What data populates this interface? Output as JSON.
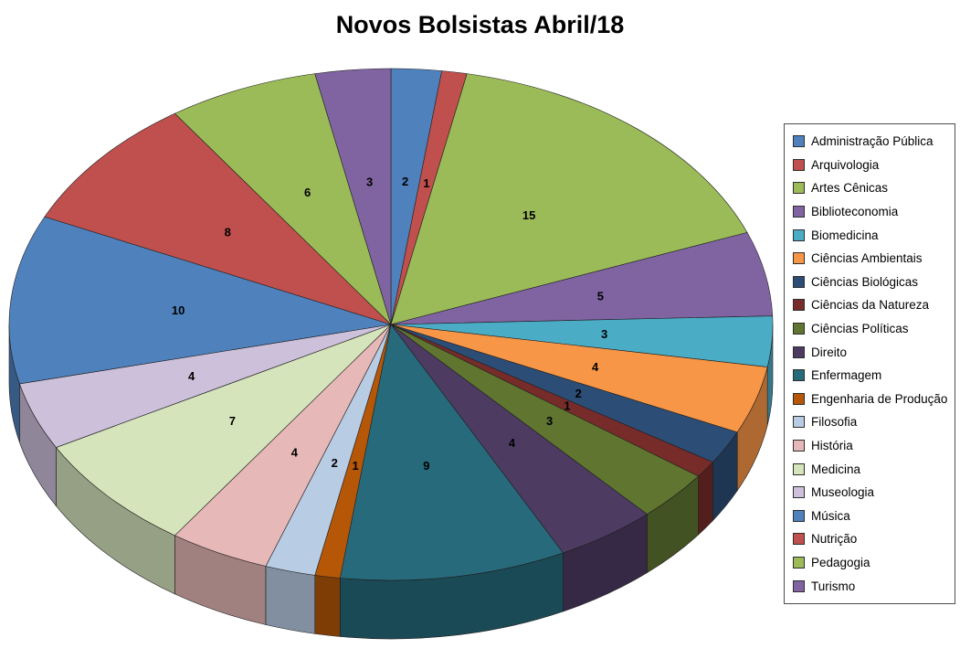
{
  "chart_data": {
    "type": "pie",
    "style": "3d",
    "title": "Novos Bolsistas Abril/18",
    "start_angle_deg": 0,
    "direction": "clockwise",
    "data_labels": "value",
    "legend_position": "right",
    "grid": false,
    "categories": [
      "Administração Pública",
      "Arquivologia",
      "Artes Cênicas",
      "Biblioteconomia",
      "Biomedicina",
      "Ciências Ambientais",
      "Ciências Biológicas",
      "Ciências da Natureza",
      "Ciências Políticas",
      "Direito",
      "Enfermagem",
      "Engenharia de Produção",
      "Filosofia",
      "História",
      "Medicina",
      "Museologia",
      "Música",
      "Nutrição",
      "Pedagogia",
      "Turismo"
    ],
    "values": [
      2,
      1,
      15,
      5,
      3,
      4,
      2,
      1,
      3,
      4,
      9,
      1,
      2,
      4,
      7,
      4,
      10,
      8,
      6,
      3
    ],
    "colors": [
      "#4F81BD",
      "#C0504D",
      "#9BBB59",
      "#8064A2",
      "#4BACC6",
      "#F79646",
      "#2C4D75",
      "#772C2A",
      "#5F7530",
      "#4D3B62",
      "#276A7C",
      "#B65708",
      "#B8CCE4",
      "#E6B8B7",
      "#D6E4BC",
      "#CCC0DA",
      "#4F81BD",
      "#C0504D",
      "#9BBB59",
      "#8064A2"
    ],
    "title_color": "#000000",
    "label_color": "#000000"
  }
}
